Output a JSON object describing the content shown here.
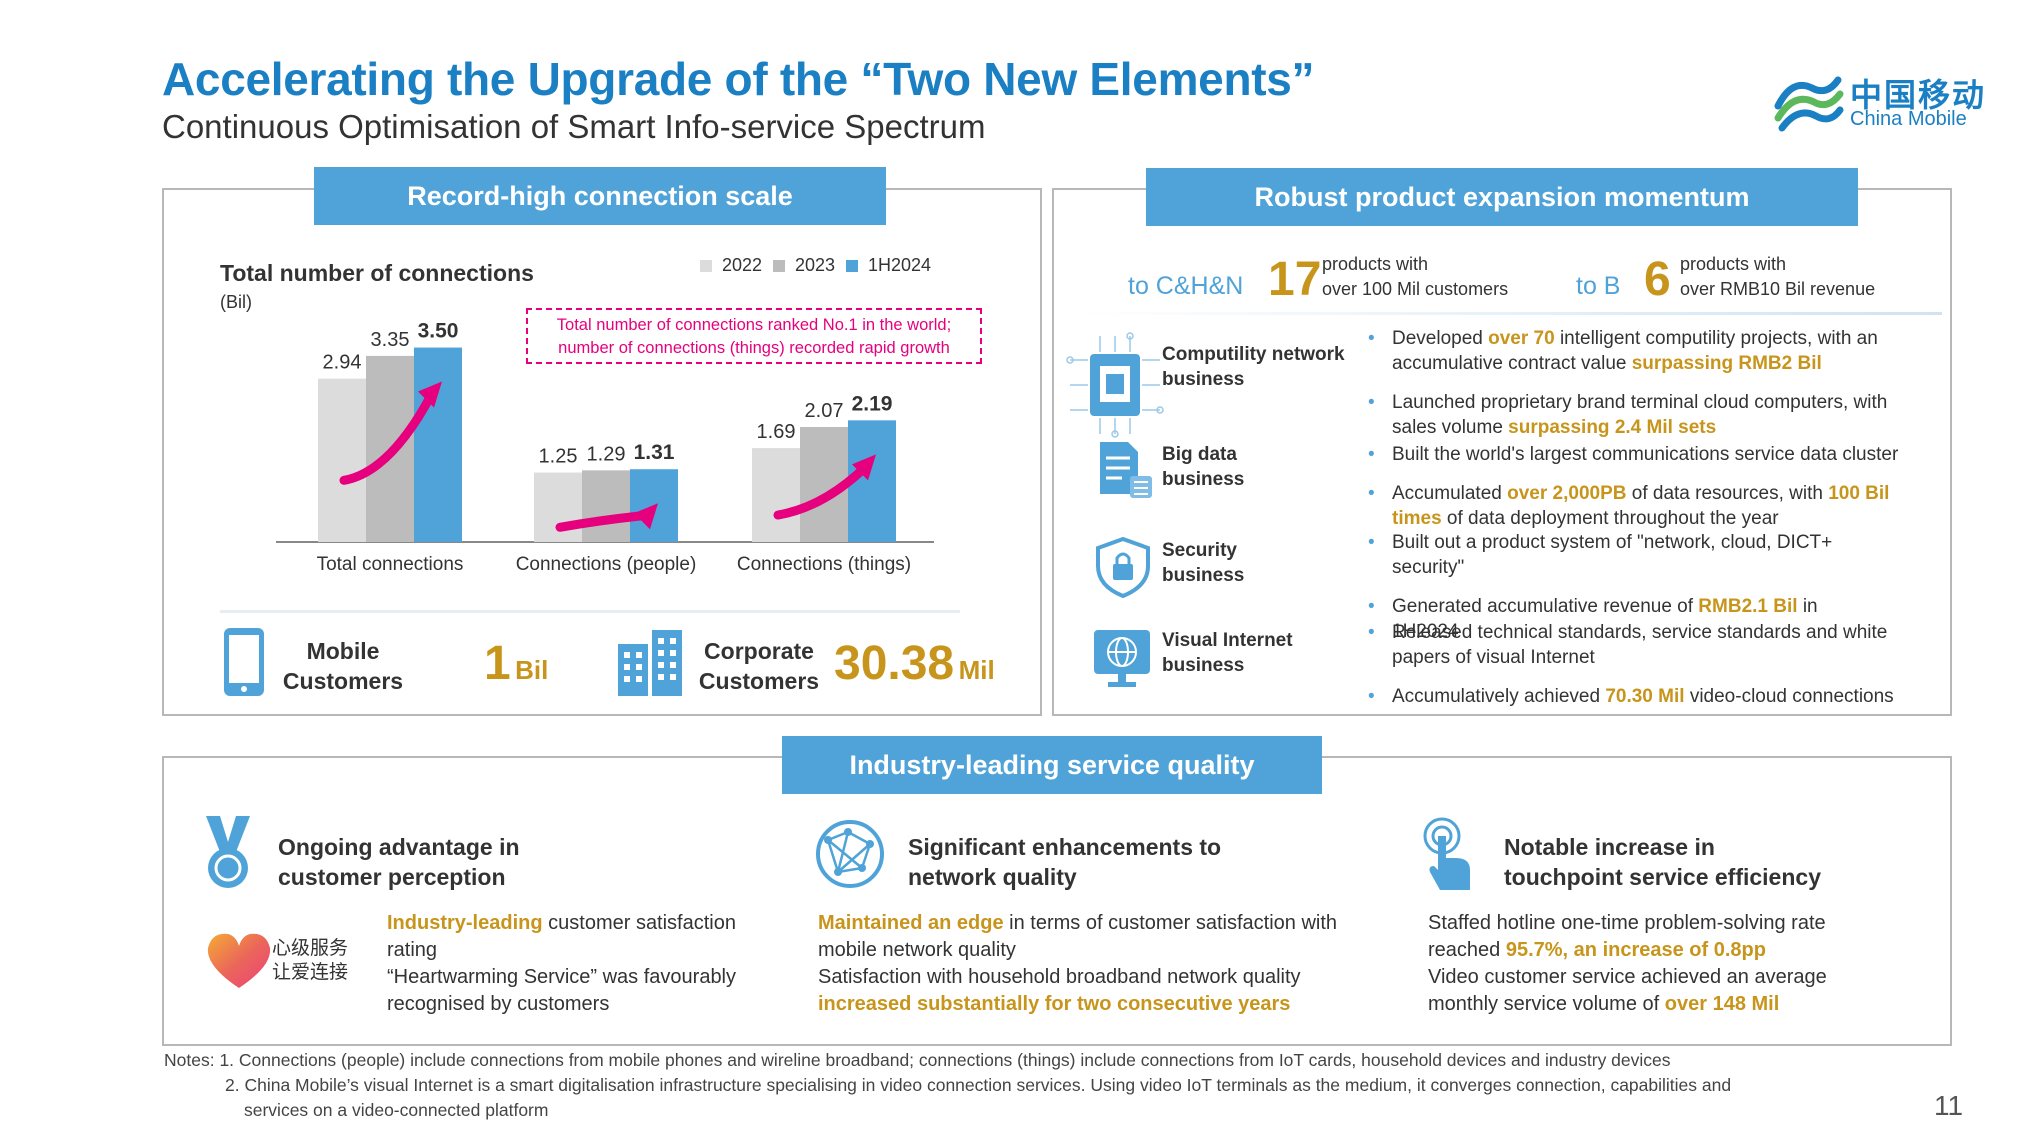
{
  "header": {
    "title": "Accelerating the Upgrade of the “Two New Elements”",
    "subtitle": "Continuous Optimisation of Smart Info-service Spectrum",
    "logo_cn": "中国移动",
    "logo_en": "China Mobile"
  },
  "colors": {
    "accent": "#1b7fc4",
    "banner": "#4fa3d8",
    "highlight": "#c8951c",
    "pink": "#e6007e",
    "bar_2022": "#dcdcdc",
    "bar_2023": "#bcbcbc",
    "bar_1h2024": "#4fa3d8"
  },
  "connections": {
    "banner": "Record-high connection scale",
    "chart_title": "Total number of connections",
    "unit": "(Bil)",
    "callout": "Total number of connections ranked No.1 in the world; number of connections (things) recorded rapid growth",
    "mobile": {
      "label": "Mobile Customers",
      "value": "1",
      "unit": "Bil",
      "icon": "phone-icon"
    },
    "corporate": {
      "label": "Corporate Customers",
      "value": "30.38",
      "unit": "Mil",
      "icon": "buildings-icon"
    }
  },
  "chart_data": {
    "type": "bar",
    "title": "Total number of connections",
    "ylabel": "(Bil)",
    "categories": [
      "Total connections",
      "Connections (people)",
      "Connections (things)"
    ],
    "series": [
      {
        "name": "2022",
        "values": [
          2.94,
          1.25,
          1.69
        ]
      },
      {
        "name": "2023",
        "values": [
          3.35,
          1.29,
          2.07
        ]
      },
      {
        "name": "1H2024",
        "values": [
          3.5,
          1.31,
          2.19
        ]
      }
    ],
    "legend": "top-right",
    "ylim": [
      0,
      3.6
    ],
    "grid": false
  },
  "products": {
    "banner": "Robust product expansion momentum",
    "cn": {
      "prefix": "to C&H&N",
      "value": "17",
      "desc1": "products with",
      "desc2": "over 100 Mil customers"
    },
    "b": {
      "prefix": "to B",
      "value": "6",
      "desc1": "products with",
      "desc2": "over RMB10 Bil revenue"
    },
    "rows": [
      {
        "icon": "chip-icon",
        "name1": "Computility network",
        "name2": "business",
        "bullets": [
          [
            {
              "t": "Developed "
            },
            {
              "t": "over 70",
              "h": 1
            },
            {
              "t": " intelligent computility projects, with an accumulative contract value "
            },
            {
              "t": "surpassing RMB2 Bil",
              "h": 1
            }
          ],
          [
            {
              "t": "Launched proprietary brand terminal cloud computers, with sales volume "
            },
            {
              "t": "surpassing 2.4 Mil sets",
              "h": 1
            }
          ]
        ]
      },
      {
        "icon": "data-document-icon",
        "name1": "Big data",
        "name2": "business",
        "bullets": [
          [
            {
              "t": "Built the world's largest communications service data cluster"
            }
          ],
          [
            {
              "t": "Accumulated "
            },
            {
              "t": "over 2,000PB",
              "h": 1
            },
            {
              "t": " of data resources, with "
            },
            {
              "t": "100 Bil times",
              "h": 1
            },
            {
              "t": " of data deployment throughout the year"
            }
          ]
        ]
      },
      {
        "icon": "shield-lock-icon",
        "name1": "Security",
        "name2": "business",
        "bullets": [
          [
            {
              "t": "Built out a product system of \"network, cloud, DICT+ security\""
            }
          ],
          [
            {
              "t": "Generated accumulative revenue of "
            },
            {
              "t": "RMB2.1 Bil",
              "h": 1
            },
            {
              "t": " in 1H2024"
            }
          ]
        ]
      },
      {
        "icon": "globe-monitor-icon",
        "name1": "Visual Internet",
        "name2": "business",
        "bullets": [
          [
            {
              "t": "Released technical standards, service standards and white papers of visual Internet"
            }
          ],
          [
            {
              "t": "Accumulatively achieved "
            },
            {
              "t": "70.30 Mil",
              "h": 1
            },
            {
              "t": " video-cloud connections"
            }
          ]
        ]
      }
    ]
  },
  "quality": {
    "banner": "Industry-leading service quality",
    "items": [
      {
        "icon": "medal-icon",
        "title1": "Ongoing advantage in",
        "title2": "customer perception",
        "seal": [
          "心级服务",
          "让爱连接"
        ],
        "paras": [
          [
            {
              "t": "Industry-leading",
              "h": 1
            },
            {
              "t": " customer satisfaction rating"
            }
          ],
          [
            {
              "t": "“Heartwarming Service” was favourably recognised by customers"
            }
          ]
        ]
      },
      {
        "icon": "network-globe-icon",
        "title1": "Significant enhancements to",
        "title2": "network quality",
        "paras": [
          [
            {
              "t": "Maintained an edge",
              "h": 1
            },
            {
              "t": " in terms of customer satisfaction with mobile network quality"
            }
          ],
          [
            {
              "t": "Satisfaction with household broadband network quality "
            },
            {
              "t": "increased substantially for two consecutive years",
              "h": 1
            }
          ]
        ]
      },
      {
        "icon": "touch-icon",
        "title1": "Notable increase in",
        "title2": "touchpoint service efficiency",
        "paras": [
          [
            {
              "t": "Staffed hotline one-time problem-solving rate reached "
            },
            {
              "t": "95.7%, an increase of 0.8pp",
              "h": 1
            }
          ],
          [
            {
              "t": "Video customer service achieved an average monthly service volume of "
            },
            {
              "t": "over 148 Mil",
              "h": 1
            }
          ]
        ]
      }
    ]
  },
  "notes": {
    "line1": "Notes: 1. Connections (people) include connections from mobile phones and wireline broadband; connections (things) include connections from IoT cards, household devices and industry devices",
    "line2": "2. China Mobile’s visual Internet is a smart digitalisation infrastructure specialising in video connection services. Using video IoT terminals as the medium, it converges connection, capabilities and",
    "line3": "services on a video-connected platform"
  },
  "page_number": "11"
}
